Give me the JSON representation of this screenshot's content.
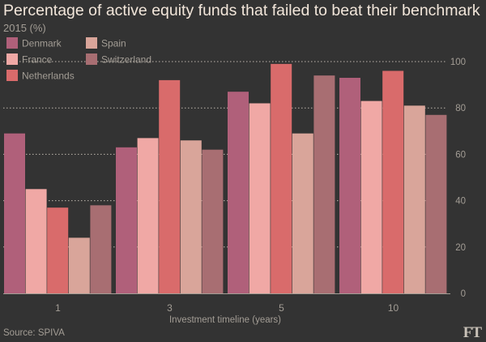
{
  "chart_data": {
    "type": "bar",
    "title": "Percentage of active equity funds that failed to beat their benchmark",
    "subtitle": "2015 (%)",
    "xlabel": "Investment timeline (years)",
    "ylabel": "",
    "ylim": [
      0,
      100
    ],
    "yticks": [
      0,
      20,
      40,
      60,
      80,
      100
    ],
    "categories": [
      "1",
      "3",
      "5",
      "10"
    ],
    "series": [
      {
        "name": "Denmark",
        "color": "#b0607a",
        "values": [
          69,
          63,
          87,
          93
        ]
      },
      {
        "name": "France",
        "color": "#f0a8a5",
        "values": [
          45,
          67,
          82,
          83
        ]
      },
      {
        "name": "Netherlands",
        "color": "#d96b6b",
        "values": [
          37,
          92,
          99,
          96
        ]
      },
      {
        "name": "Spain",
        "color": "#d9a59a",
        "values": [
          24,
          66,
          69,
          81
        ]
      },
      {
        "name": "Switzerland",
        "color": "#a86e72",
        "values": [
          38,
          62,
          94,
          77
        ]
      }
    ],
    "grid": true,
    "legend_position": "top-left",
    "source": "Source: SPIVA",
    "logo": "FT"
  }
}
